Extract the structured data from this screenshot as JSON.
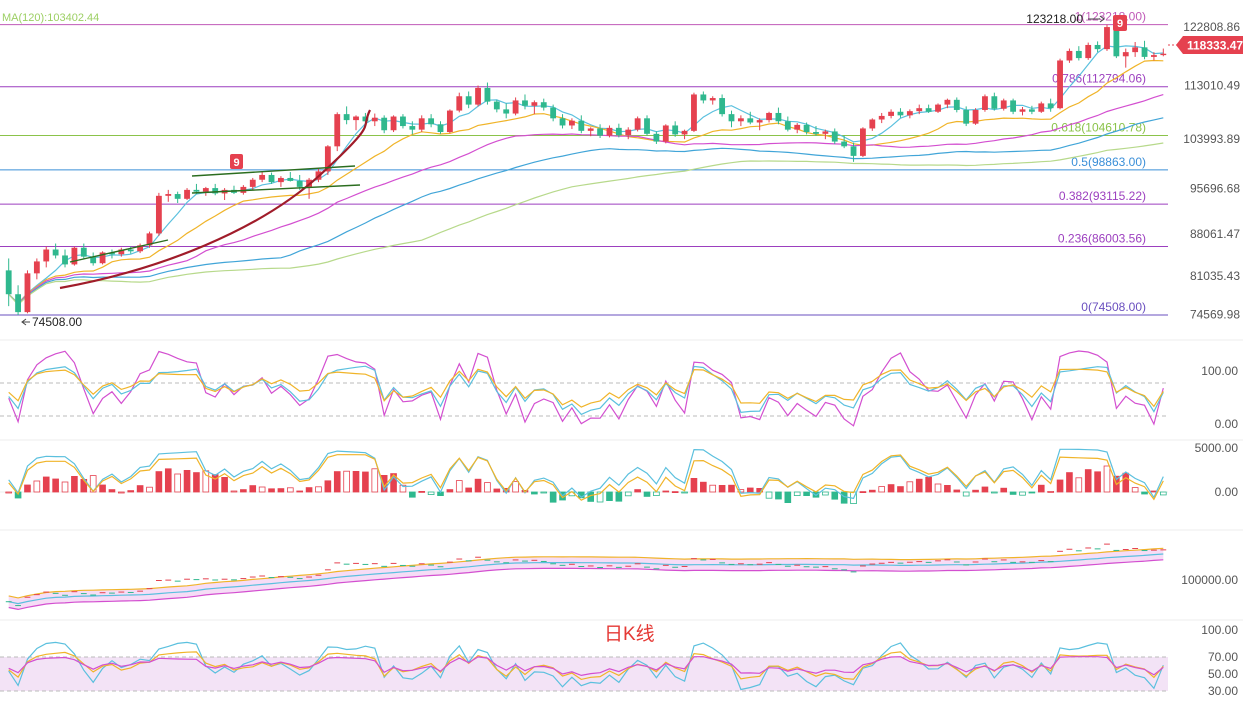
{
  "chart_data": {
    "type": "candlestick",
    "title": "日K线",
    "ma_label": "MA(120):103402.44",
    "colors": {
      "up": "#e5414f",
      "down": "#2fb88e",
      "fib_line": "#a43a9f",
      "fib_text": "#9c3fbf",
      "price_tag": "#e5414f"
    },
    "main_axis": {
      "ticks": [
        "122808.86",
        "113010.49",
        "103993.89",
        "95696.68",
        "88061.47",
        "81035.43",
        "74569.98"
      ],
      "range": [
        72000,
        126000
      ]
    },
    "last_price": "118333.47",
    "fib_levels": [
      {
        "ratio": "1",
        "value": 123218,
        "label": "1(123218.00)",
        "color": "#c05ab8"
      },
      {
        "ratio": "0.786",
        "value": 112794.06,
        "label": "0.786(112794.06)",
        "color": "#9c3fbf"
      },
      {
        "ratio": "0.618",
        "value": 104610.78,
        "label": "0.618(104610.78)",
        "color": "#8bc34a"
      },
      {
        "ratio": "0.5",
        "value": 98863,
        "label": "0.5(98863.00)",
        "color": "#3a8fd8"
      },
      {
        "ratio": "0.382",
        "value": 93115.22,
        "label": "0.382(93115.22)",
        "color": "#9c3fbf"
      },
      {
        "ratio": "0.236",
        "value": 86003.56,
        "label": "0.236(86003.56)",
        "color": "#9c3fbf"
      },
      {
        "ratio": "0",
        "value": 74508,
        "label": "0(74508.00)",
        "color": "#6a4fbf"
      }
    ],
    "high_marker": "123218.00",
    "low_marker": "74508.00",
    "td_marks": [
      "9",
      "9"
    ],
    "candles": [
      [
        82000,
        84000,
        76000,
        78000
      ],
      [
        78000,
        79500,
        74508,
        75000
      ],
      [
        75000,
        82000,
        74800,
        81500
      ],
      [
        81500,
        84000,
        80500,
        83500
      ],
      [
        83500,
        86000,
        82500,
        85500
      ],
      [
        85500,
        86500,
        84000,
        84500
      ],
      [
        84500,
        85500,
        82500,
        83000
      ],
      [
        83000,
        86000,
        82800,
        85800
      ],
      [
        85800,
        86500,
        84000,
        84300
      ],
      [
        84300,
        85000,
        82800,
        83200
      ],
      [
        83200,
        85200,
        83000,
        85000
      ],
      [
        85000,
        85500,
        84000,
        84700
      ],
      [
        84700,
        85800,
        84300,
        85500
      ],
      [
        85500,
        86000,
        84800,
        85200
      ],
      [
        85200,
        86500,
        84900,
        86200
      ],
      [
        86200,
        88500,
        85800,
        88200
      ],
      [
        88200,
        95000,
        87800,
        94500
      ],
      [
        94500,
        95500,
        93500,
        94800
      ],
      [
        94800,
        95200,
        93300,
        94000
      ],
      [
        94000,
        95800,
        93800,
        95500
      ],
      [
        95500,
        96500,
        94800,
        95200
      ],
      [
        95200,
        96000,
        94500,
        95800
      ],
      [
        95800,
        96500,
        94600,
        94900
      ],
      [
        94900,
        95800,
        93800,
        95500
      ],
      [
        95500,
        96200,
        94800,
        95000
      ],
      [
        95000,
        96300,
        94700,
        96000
      ],
      [
        96000,
        97500,
        95500,
        97200
      ],
      [
        97200,
        98500,
        96800,
        98000
      ],
      [
        98000,
        98400,
        96500,
        96800
      ],
      [
        96800,
        97800,
        96000,
        97500
      ],
      [
        97500,
        98500,
        96900,
        97000
      ],
      [
        97000,
        98000,
        95500,
        96000
      ],
      [
        96000,
        97500,
        94000,
        97200
      ],
      [
        97200,
        99000,
        96800,
        98600
      ],
      [
        98600,
        103000,
        98000,
        102800
      ],
      [
        102800,
        108500,
        102000,
        108200
      ],
      [
        108200,
        109500,
        106500,
        107200
      ],
      [
        107200,
        108000,
        105500,
        107800
      ],
      [
        107800,
        108400,
        106500,
        107000
      ],
      [
        107000,
        108300,
        106200,
        107600
      ],
      [
        107600,
        108000,
        105000,
        105500
      ],
      [
        105500,
        108000,
        105200,
        107800
      ],
      [
        107800,
        108200,
        105800,
        106200
      ],
      [
        106200,
        107000,
        104800,
        105600
      ],
      [
        105600,
        108000,
        105200,
        107500
      ],
      [
        107500,
        108200,
        106000,
        106500
      ],
      [
        106500,
        107000,
        104900,
        105200
      ],
      [
        105200,
        109000,
        105000,
        108800
      ],
      [
        108800,
        111800,
        108500,
        111200
      ],
      [
        111200,
        112000,
        109200,
        109800
      ],
      [
        109800,
        113000,
        109500,
        112600
      ],
      [
        112600,
        113500,
        109800,
        110300
      ],
      [
        110300,
        110600,
        108500,
        109000
      ],
      [
        109000,
        110000,
        107500,
        108300
      ],
      [
        108300,
        111000,
        108000,
        110500
      ],
      [
        110500,
        111500,
        109000,
        109600
      ],
      [
        109600,
        110500,
        108200,
        110200
      ],
      [
        110200,
        110800,
        108800,
        109300
      ],
      [
        109300,
        109800,
        107000,
        107500
      ],
      [
        107500,
        108200,
        105800,
        106300
      ],
      [
        106300,
        107500,
        105700,
        107100
      ],
      [
        107100,
        108000,
        105000,
        105400
      ],
      [
        105400,
        106000,
        104500,
        105800
      ],
      [
        105800,
        106500,
        104200,
        104600
      ],
      [
        104600,
        106300,
        104300,
        105900
      ],
      [
        105900,
        106600,
        104300,
        104700
      ],
      [
        104700,
        106000,
        104000,
        105600
      ],
      [
        105600,
        107800,
        105300,
        107500
      ],
      [
        107500,
        108000,
        104600,
        104900
      ],
      [
        104900,
        105300,
        103200,
        103600
      ],
      [
        103600,
        106500,
        103300,
        106300
      ],
      [
        106300,
        107000,
        104400,
        104800
      ],
      [
        104800,
        105600,
        104000,
        105400
      ],
      [
        105400,
        111800,
        105200,
        111500
      ],
      [
        111500,
        112000,
        110000,
        110500
      ],
      [
        110500,
        111200,
        109800,
        110900
      ],
      [
        110900,
        111500,
        107800,
        108200
      ],
      [
        108200,
        108800,
        106000,
        107000
      ],
      [
        107000,
        108000,
        106200,
        107500
      ],
      [
        107500,
        108600,
        106500,
        106800
      ],
      [
        106800,
        107500,
        105500,
        107200
      ],
      [
        107200,
        108600,
        106800,
        108400
      ],
      [
        108400,
        109300,
        106500,
        107000
      ],
      [
        107000,
        107800,
        105300,
        105600
      ],
      [
        105600,
        106700,
        105000,
        106400
      ],
      [
        106400,
        106800,
        104800,
        105200
      ],
      [
        105200,
        106200,
        104600,
        104900
      ],
      [
        104900,
        105600,
        104000,
        105300
      ],
      [
        105300,
        105800,
        103200,
        103600
      ],
      [
        103600,
        104600,
        102500,
        102800
      ],
      [
        102800,
        103400,
        100200,
        101200
      ],
      [
        101200,
        106000,
        101000,
        105800
      ],
      [
        105800,
        107500,
        105400,
        107300
      ],
      [
        107300,
        108400,
        106700,
        107900
      ],
      [
        107900,
        109000,
        107500,
        108600
      ],
      [
        108600,
        109200,
        107600,
        108000
      ],
      [
        108000,
        109000,
        107500,
        108700
      ],
      [
        108700,
        109800,
        108200,
        109200
      ],
      [
        109200,
        109800,
        108400,
        108600
      ],
      [
        108600,
        110000,
        108400,
        109800
      ],
      [
        109800,
        110800,
        109200,
        110600
      ],
      [
        110600,
        111000,
        108500,
        108900
      ],
      [
        108900,
        109500,
        106200,
        106600
      ],
      [
        106600,
        109200,
        106400,
        108900
      ],
      [
        108900,
        111500,
        108600,
        111200
      ],
      [
        111200,
        111800,
        108800,
        109100
      ],
      [
        109100,
        110800,
        108800,
        110500
      ],
      [
        110500,
        110800,
        108200,
        108600
      ],
      [
        108600,
        109400,
        108000,
        109000
      ],
      [
        109000,
        109600,
        108200,
        108600
      ],
      [
        108600,
        110300,
        108400,
        110000
      ],
      [
        110000,
        110800,
        108600,
        109200
      ],
      [
        109200,
        117500,
        109000,
        117200
      ],
      [
        117200,
        119200,
        116800,
        118800
      ],
      [
        118800,
        119600,
        117200,
        117600
      ],
      [
        117600,
        120200,
        117300,
        119800
      ],
      [
        119800,
        120400,
        118600,
        119100
      ],
      [
        119100,
        123218,
        118800,
        122800
      ],
      [
        122800,
        123100,
        117600,
        117900
      ],
      [
        117900,
        119200,
        116000,
        118600
      ],
      [
        118600,
        120300,
        117800,
        119400
      ],
      [
        119400,
        120500,
        117400,
        117800
      ],
      [
        117800,
        118600,
        117200,
        118100
      ],
      [
        118100,
        119200,
        117900,
        118333
      ]
    ],
    "overlay_lines": [
      "MA short",
      "MA mid",
      "MA long",
      "MA 120",
      "EMA"
    ],
    "osc_kdj_axis": {
      "ticks": [
        "100.00",
        "0.00"
      ]
    },
    "osc_macd_axis": {
      "ticks": [
        "5000.00",
        "0.00"
      ]
    },
    "osc_boll_axis": {
      "ticks": [
        "100000.00"
      ]
    },
    "osc_rsi_axis": {
      "ticks": [
        "100.00",
        "70.00",
        "50.00",
        "30.00"
      ]
    }
  }
}
